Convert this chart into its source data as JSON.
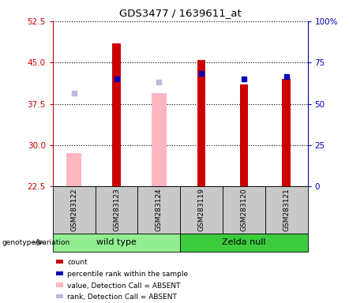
{
  "title": "GDS3477 / 1639611_at",
  "samples": [
    "GSM283122",
    "GSM283123",
    "GSM283124",
    "GSM283119",
    "GSM283120",
    "GSM283121"
  ],
  "groups": [
    {
      "label": "wild type",
      "indices": [
        0,
        1,
        2
      ],
      "color": "#90EE90"
    },
    {
      "label": "Zelda null",
      "indices": [
        3,
        4,
        5
      ],
      "color": "#3DCC3D"
    }
  ],
  "ylim_left": [
    22.5,
    52.5
  ],
  "ylim_right": [
    0,
    100
  ],
  "yticks_left": [
    22.5,
    30.0,
    37.5,
    45.0,
    52.5
  ],
  "yticks_right": [
    0,
    25,
    50,
    75,
    100
  ],
  "count_values": [
    null,
    48.5,
    null,
    45.5,
    41.0,
    42.0
  ],
  "count_color": "#CC0000",
  "count_bar_width": 0.35,
  "rank_values": [
    null,
    42.0,
    null,
    43.0,
    42.0,
    42.5
  ],
  "rank_color": "#0000BB",
  "rank_marker_size": 5,
  "absent_value_values": [
    28.5,
    null,
    39.5,
    null,
    null,
    null
  ],
  "absent_value_color": "#FFB6C1",
  "absent_value_bar_width": 0.35,
  "absent_rank_values": [
    39.5,
    null,
    41.5,
    null,
    null,
    null
  ],
  "absent_rank_color": "#BBBBDD",
  "absent_rank_marker_size": 5,
  "left_axis_color": "#CC0000",
  "right_axis_color": "#0000BB",
  "bg_plot": "#FFFFFF",
  "bg_label": "#C8C8C8",
  "bg_wild": "#90EE90",
  "bg_zelda": "#3DCC3D",
  "genotype_label": "genotype/variation",
  "legend_items": [
    {
      "label": "count",
      "color": "#CC0000"
    },
    {
      "label": "percentile rank within the sample",
      "color": "#0000BB"
    },
    {
      "label": "value, Detection Call = ABSENT",
      "color": "#FFB6C1"
    },
    {
      "label": "rank, Detection Call = ABSENT",
      "color": "#BBBBDD"
    }
  ]
}
